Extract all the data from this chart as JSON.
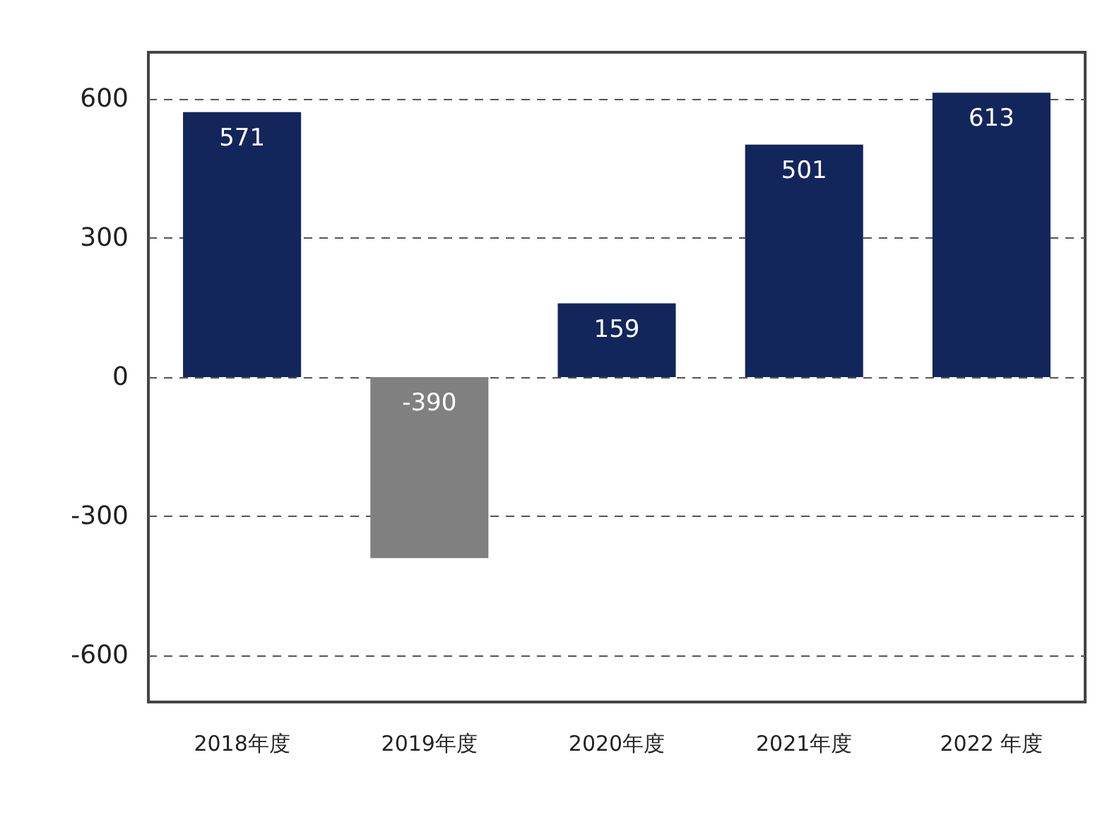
{
  "chart_data": {
    "type": "bar",
    "categories": [
      "2018年度",
      "2019年度",
      "2020年度",
      "2021年度",
      "2022 年度"
    ],
    "values": [
      571,
      -390,
      159,
      501,
      613
    ],
    "colors": [
      "#13265c",
      "#808080",
      "#13265c",
      "#13265c",
      "#13265c"
    ],
    "ylim": [
      -700,
      700
    ],
    "yticks": [
      -600,
      -300,
      0,
      300,
      600
    ],
    "grid": "y",
    "data_labels": true
  }
}
